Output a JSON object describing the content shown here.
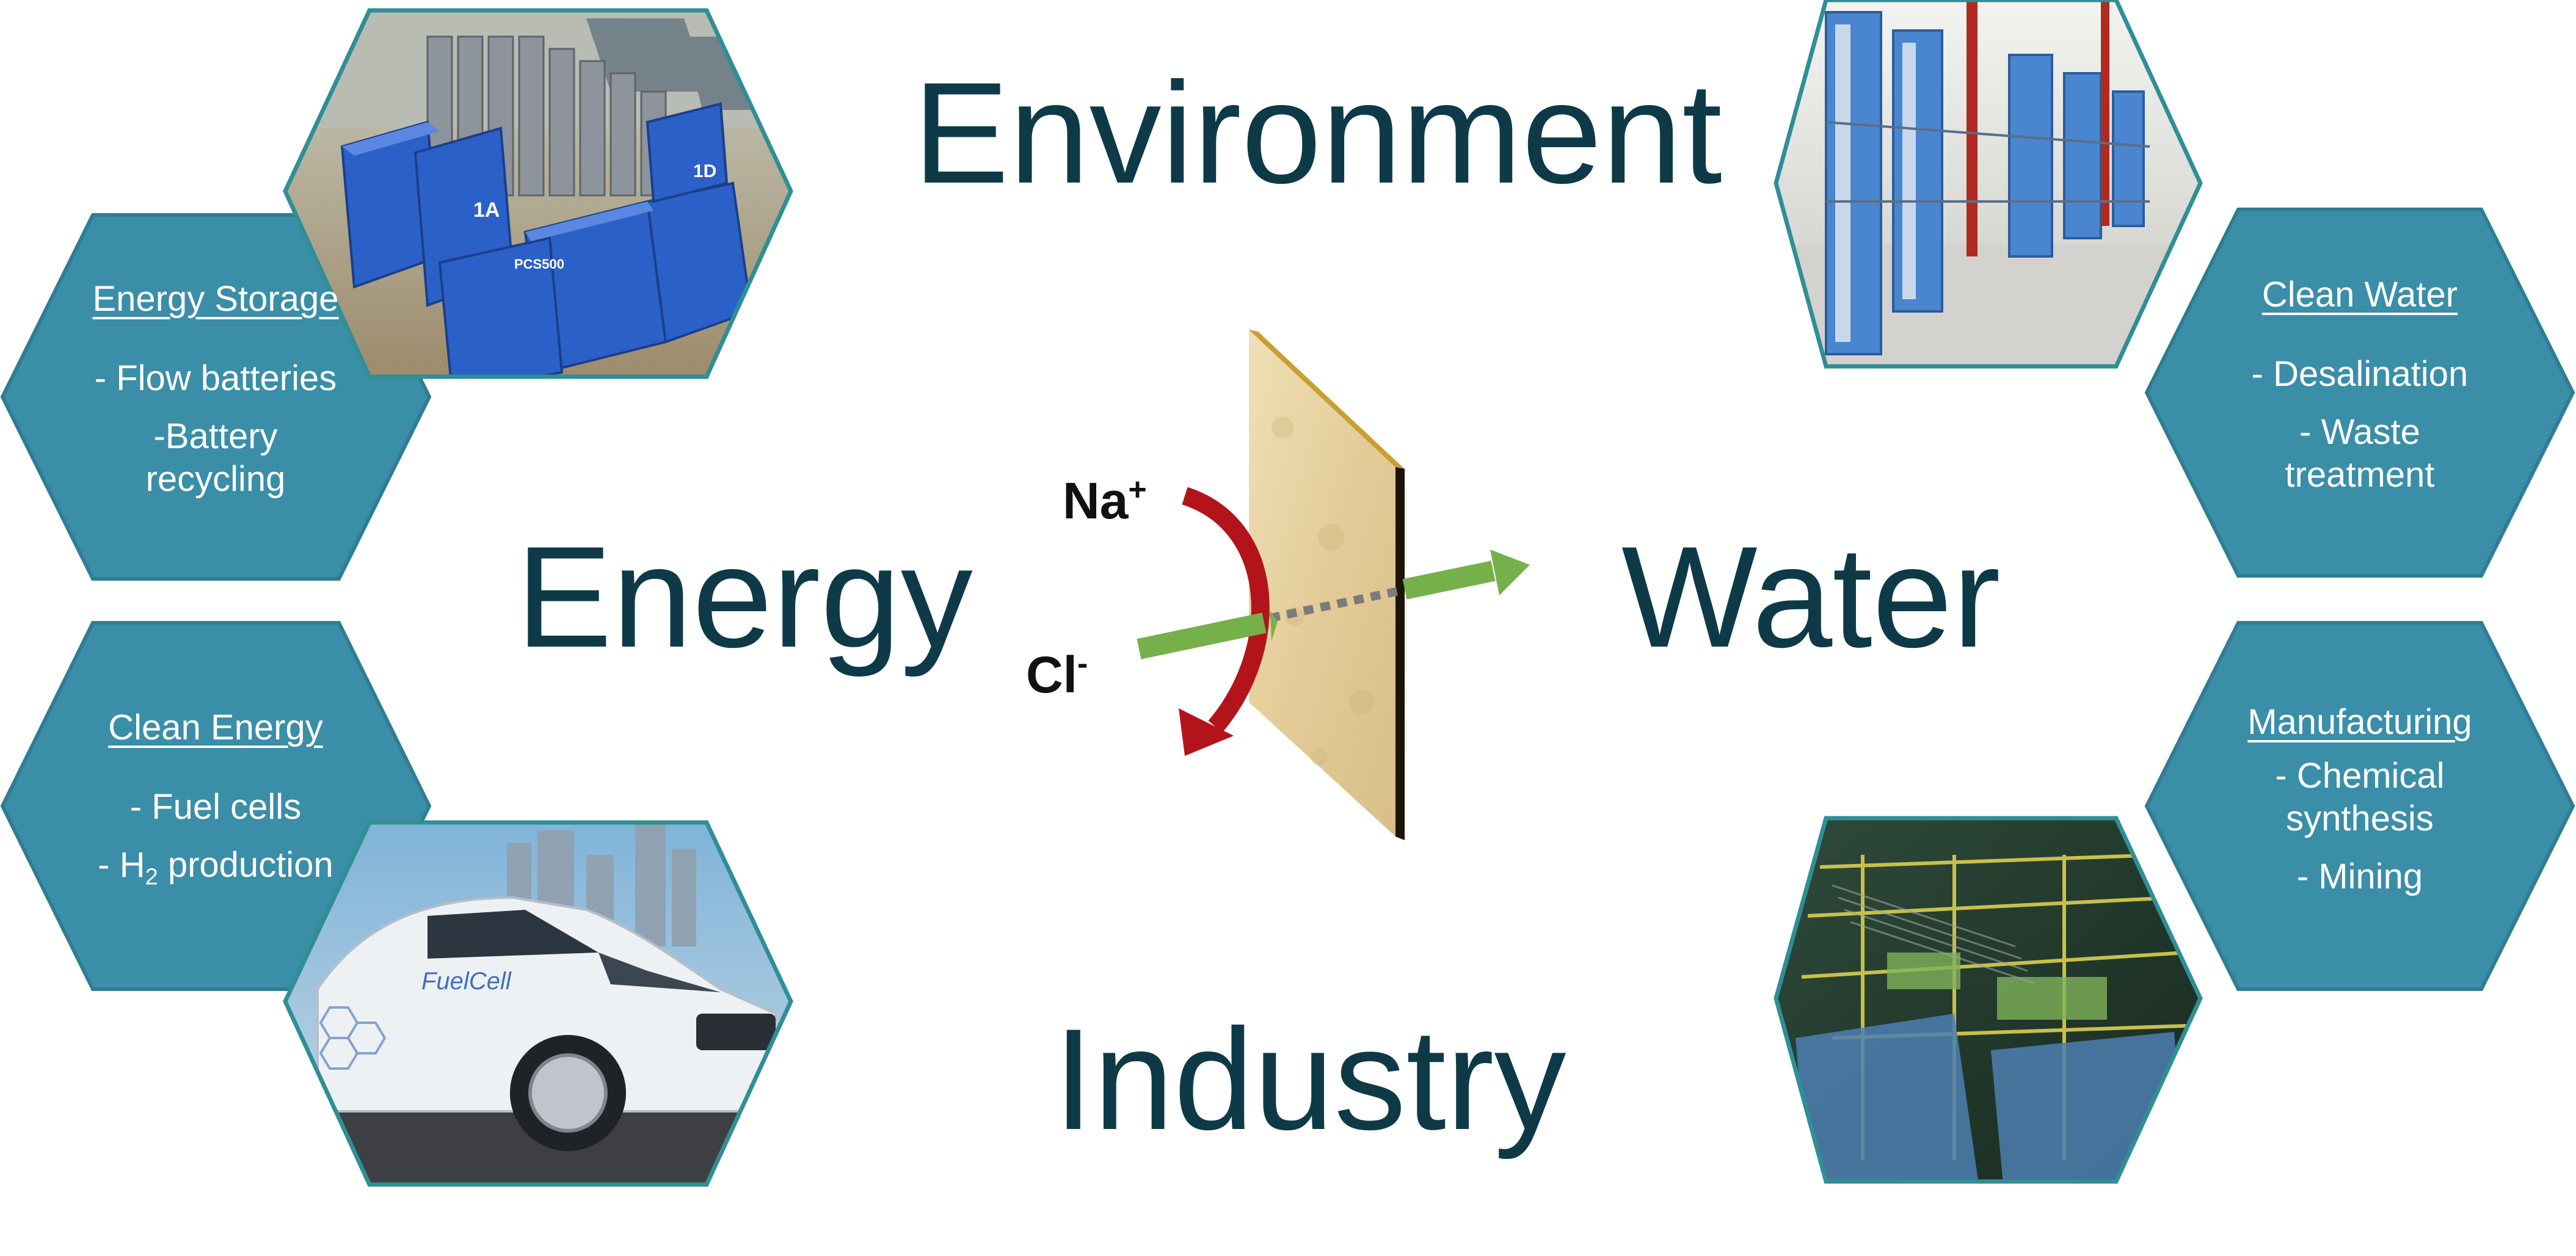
{
  "big_words": {
    "environment": "Environment",
    "energy": "Energy",
    "water": "Water",
    "industry": "Industry"
  },
  "hexagons": {
    "energy_storage": {
      "title": "Energy Storage",
      "lines": [
        "- Flow batteries",
        "-Battery",
        "recycling"
      ]
    },
    "clean_energy": {
      "title": "Clean Energy",
      "lines": [
        "- Fuel cells",
        "- H",
        "2",
        " production"
      ]
    },
    "clean_water": {
      "title": "Clean Water",
      "lines": [
        "- Desalination",
        "- Waste",
        "treatment"
      ]
    },
    "manufacturing": {
      "title": "Manufacturing",
      "lines": [
        "- Chemical",
        "synthesis",
        "- Mining"
      ]
    }
  },
  "photo_labels": {
    "battery_modules": [
      "1A",
      "1D",
      "PCS500"
    ],
    "car_logo": "FuelCell"
  },
  "ions": {
    "sodium": "Na",
    "sodium_charge": "+",
    "chloride": "Cl",
    "chloride_charge": "-"
  },
  "colors": {
    "word_text": "#0e3a48",
    "hex_fill": "#3a8ea8",
    "hex_stroke": "#2f7d93",
    "photo_border": "#2f8f95",
    "red_arrow": "#b3141c",
    "green_arrow": "#76b04a",
    "membrane": "#e6d2a4"
  }
}
